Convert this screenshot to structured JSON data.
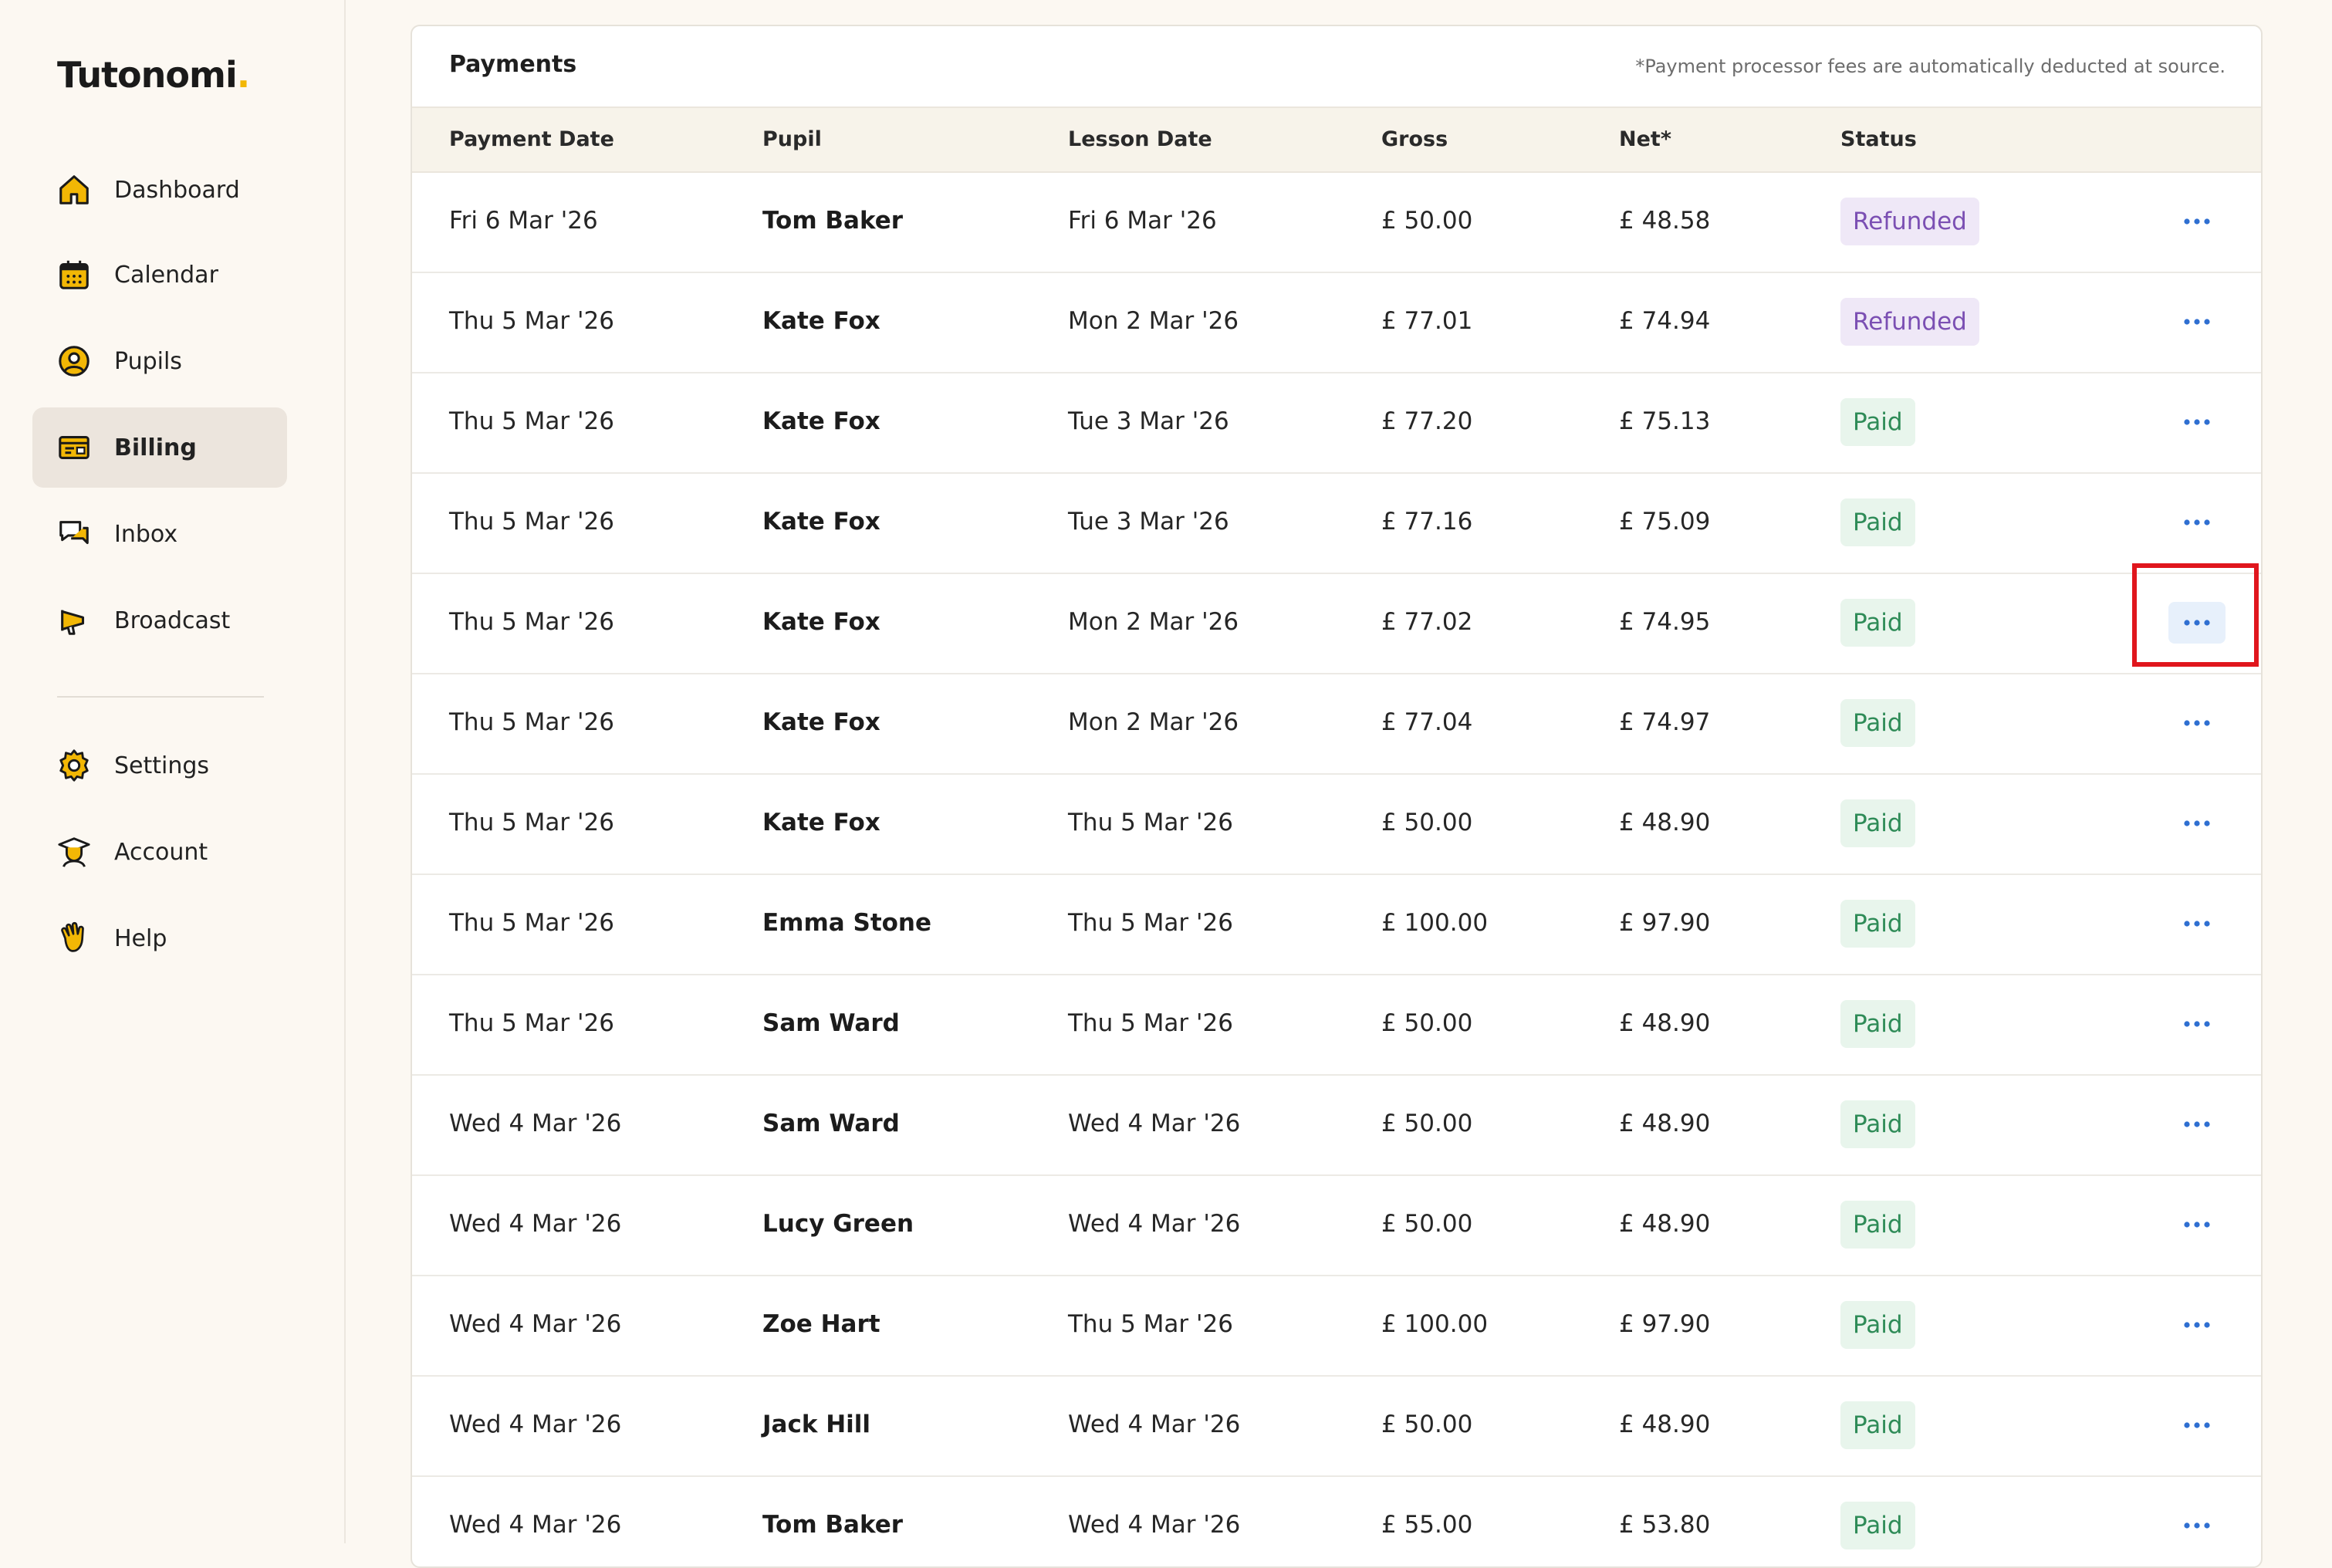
{
  "app": {
    "logo_text": "Tutonomi",
    "logo_dot": "."
  },
  "sidebar": {
    "items": [
      {
        "label": "Dashboard",
        "icon": "home-icon"
      },
      {
        "label": "Calendar",
        "icon": "calendar-icon"
      },
      {
        "label": "Pupils",
        "icon": "user-circle-icon"
      },
      {
        "label": "Billing",
        "icon": "billing-icon",
        "active": true
      },
      {
        "label": "Inbox",
        "icon": "chat-icon"
      },
      {
        "label": "Broadcast",
        "icon": "megaphone-icon"
      },
      {
        "label": "Settings",
        "icon": "gear-icon"
      },
      {
        "label": "Account",
        "icon": "graduate-icon"
      },
      {
        "label": "Help",
        "icon": "hand-icon"
      }
    ]
  },
  "payments": {
    "title": "Payments",
    "note": "*Payment processor fees are automatically deducted at source.",
    "columns": [
      "Payment Date",
      "Pupil",
      "Lesson Date",
      "Gross",
      "Net*",
      "Status"
    ],
    "rows": [
      {
        "payment_date": "Fri 6 Mar '26",
        "pupil": "Tom Baker",
        "lesson_date": "Fri 6 Mar '26",
        "gross": "£ 50.00",
        "net": "£ 48.58",
        "status": "Refunded"
      },
      {
        "payment_date": "Thu 5 Mar '26",
        "pupil": "Kate Fox",
        "lesson_date": "Mon 2 Mar '26",
        "gross": "£ 77.01",
        "net": "£ 74.94",
        "status": "Refunded"
      },
      {
        "payment_date": "Thu 5 Mar '26",
        "pupil": "Kate Fox",
        "lesson_date": "Tue 3 Mar '26",
        "gross": "£ 77.20",
        "net": "£ 75.13",
        "status": "Paid"
      },
      {
        "payment_date": "Thu 5 Mar '26",
        "pupil": "Kate Fox",
        "lesson_date": "Tue 3 Mar '26",
        "gross": "£ 77.16",
        "net": "£ 75.09",
        "status": "Paid"
      },
      {
        "payment_date": "Thu 5 Mar '26",
        "pupil": "Kate Fox",
        "lesson_date": "Mon 2 Mar '26",
        "gross": "£ 77.02",
        "net": "£ 74.95",
        "status": "Paid",
        "highlighted": true
      },
      {
        "payment_date": "Thu 5 Mar '26",
        "pupil": "Kate Fox",
        "lesson_date": "Mon 2 Mar '26",
        "gross": "£ 77.04",
        "net": "£ 74.97",
        "status": "Paid"
      },
      {
        "payment_date": "Thu 5 Mar '26",
        "pupil": "Kate Fox",
        "lesson_date": "Thu 5 Mar '26",
        "gross": "£ 50.00",
        "net": "£ 48.90",
        "status": "Paid"
      },
      {
        "payment_date": "Thu 5 Mar '26",
        "pupil": "Emma Stone",
        "lesson_date": "Thu 5 Mar '26",
        "gross": "£ 100.00",
        "net": "£ 97.90",
        "status": "Paid"
      },
      {
        "payment_date": "Thu 5 Mar '26",
        "pupil": "Sam Ward",
        "lesson_date": "Thu 5 Mar '26",
        "gross": "£ 50.00",
        "net": "£ 48.90",
        "status": "Paid"
      },
      {
        "payment_date": "Wed 4 Mar '26",
        "pupil": "Sam Ward",
        "lesson_date": "Wed 4 Mar '26",
        "gross": "£ 50.00",
        "net": "£ 48.90",
        "status": "Paid"
      },
      {
        "payment_date": "Wed 4 Mar '26",
        "pupil": "Lucy Green",
        "lesson_date": "Wed 4 Mar '26",
        "gross": "£ 50.00",
        "net": "£ 48.90",
        "status": "Paid"
      },
      {
        "payment_date": "Wed 4 Mar '26",
        "pupil": "Zoe Hart",
        "lesson_date": "Thu 5 Mar '26",
        "gross": "£ 100.00",
        "net": "£ 97.90",
        "status": "Paid"
      },
      {
        "payment_date": "Wed 4 Mar '26",
        "pupil": "Jack Hill",
        "lesson_date": "Wed 4 Mar '26",
        "gross": "£ 50.00",
        "net": "£ 48.90",
        "status": "Paid"
      },
      {
        "payment_date": "Wed 4 Mar '26",
        "pupil": "Tom Baker",
        "lesson_date": "Wed 4 Mar '26",
        "gross": "£ 55.00",
        "net": "£ 53.80",
        "status": "Paid"
      }
    ]
  },
  "colors": {
    "accent": "#f2b705",
    "refunded_bg": "#efe8f7",
    "refunded_text": "#7b4fb3",
    "paid_bg": "#e8f5ec",
    "paid_text": "#2e8b57",
    "more_icon": "#2f6fd1",
    "annotation": "#e0161d"
  }
}
